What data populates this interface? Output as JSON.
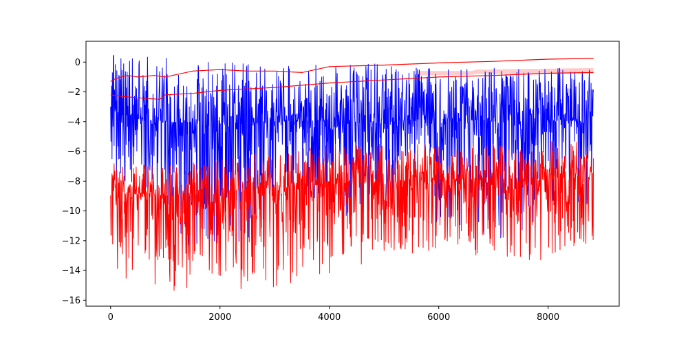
{
  "chart_data": {
    "type": "line",
    "title": "",
    "xlabel": "",
    "ylabel": "",
    "xlim": [
      -450,
      9300
    ],
    "ylim": [
      -16.4,
      1.4
    ],
    "x_ticks": [
      0,
      2000,
      4000,
      6000,
      8000
    ],
    "y_ticks": [
      0,
      -2,
      -4,
      -6,
      -8,
      -10,
      -12,
      -14,
      -16
    ],
    "grid": false,
    "legend": "none",
    "x_range": [
      0,
      8830
    ],
    "colors": {
      "blue": "#0000ff",
      "red": "#ff0000",
      "band": "#ffcccc"
    },
    "series": [
      {
        "style": "noisy-line",
        "color": "#0000ff",
        "x": [
          0,
          500,
          1000,
          2000,
          3000,
          4000,
          5000,
          6000,
          7000,
          8000,
          8830
        ],
        "y_max": [
          0.7,
          0.7,
          0.3,
          0.0,
          -0.2,
          -0.2,
          -0.1,
          -0.3,
          -0.3,
          -0.3,
          -0.5
        ],
        "y_center": [
          -3.0,
          -3.8,
          -4.0,
          -4.2,
          -4.0,
          -3.9,
          -4.0,
          -3.9,
          -3.9,
          -3.9,
          -4.0
        ],
        "y_min": [
          -8.5,
          -9.0,
          -12.0,
          -13.0,
          -11.0,
          -10.5,
          -10.0,
          -11.0,
          -12.0,
          -11.0,
          -9.5
        ]
      },
      {
        "style": "noisy-line",
        "color": "#ff0000",
        "x": [
          0,
          500,
          1000,
          2000,
          3000,
          4000,
          5000,
          6000,
          7000,
          8000,
          8830
        ],
        "y_max": [
          -6.8,
          -6.8,
          -7.0,
          -6.5,
          -6.0,
          -5.5,
          -5.5,
          -5.3,
          -5.5,
          -5.3,
          -5.2
        ],
        "y_center": [
          -8.8,
          -8.8,
          -9.0,
          -8.7,
          -8.4,
          -8.2,
          -8.0,
          -7.9,
          -7.9,
          -7.8,
          -7.6
        ],
        "y_min": [
          -14.2,
          -14.9,
          -15.6,
          -15.2,
          -15.3,
          -14.3,
          -13.2,
          -12.6,
          -13.2,
          -13.5,
          -12.0
        ]
      },
      {
        "style": "smooth-line",
        "color": "#ff0000",
        "x": [
          0,
          200,
          500,
          900,
          1000,
          1500,
          2000,
          2500,
          3000,
          4000,
          5000,
          6000,
          7000,
          8000,
          8830
        ],
        "y": [
          -2.2,
          -2.3,
          -2.4,
          -2.5,
          -2.2,
          -2.1,
          -1.9,
          -1.8,
          -1.7,
          -1.4,
          -1.2,
          -1.0,
          -0.9,
          -0.75,
          -0.7
        ]
      },
      {
        "style": "smooth-line",
        "color": "#ff0000",
        "x": [
          0,
          100,
          300,
          500,
          800,
          1000,
          1500,
          2000,
          2500,
          3000,
          3500,
          4000,
          5000,
          6000,
          7000,
          8000,
          8830
        ],
        "y": [
          -1.3,
          -1.1,
          -0.9,
          -1.0,
          -0.9,
          -1.0,
          -0.6,
          -0.5,
          -0.6,
          -0.6,
          -0.7,
          -0.3,
          -0.2,
          -0.05,
          0.05,
          0.2,
          0.25
        ]
      }
    ],
    "band": {
      "color": "#ffcccc",
      "x": [
        5600,
        6600,
        6700,
        8830
      ],
      "y_top": [
        -0.6,
        -0.6,
        -0.5,
        -0.4
      ],
      "y_bottom": [
        -0.9,
        -0.85,
        -0.8,
        -0.75
      ]
    }
  }
}
